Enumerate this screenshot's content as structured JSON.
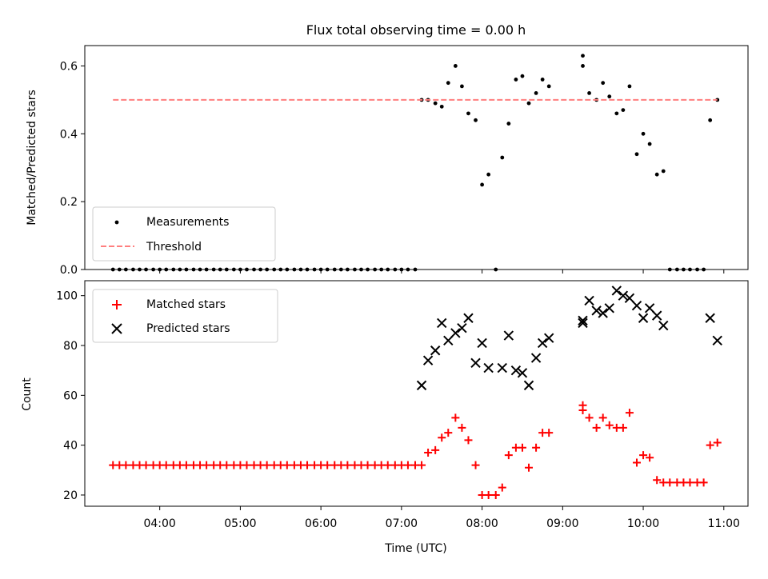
{
  "chart_data": {
    "type": "scatter",
    "title": "Flux total observing time = 0.00 h",
    "xlabel": "Time (UTC)",
    "x_unit": "hours UTC",
    "xlim": [
      3.07,
      11.3
    ],
    "x_ticks": [
      4,
      5,
      6,
      7,
      8,
      9,
      10,
      11
    ],
    "x_tick_labels": [
      "04:00",
      "05:00",
      "06:00",
      "07:00",
      "08:00",
      "09:00",
      "10:00",
      "11:00"
    ],
    "panels": [
      {
        "ylabel": "Matched/Predicted stars",
        "ylim": [
          0,
          0.66
        ],
        "y_ticks": [
          0,
          0.2,
          0.4,
          0.6
        ],
        "y_tick_labels": [
          "0.0",
          "0.2",
          "0.4",
          "0.6"
        ],
        "legend": {
          "position": "lower-left",
          "entries": [
            "Measurements",
            "Threshold"
          ]
        },
        "series": [
          {
            "name": "Measurements",
            "marker": "dot",
            "color": "#000000",
            "points": [
              [
                3.42,
                0
              ],
              [
                3.5,
                0
              ],
              [
                3.58,
                0
              ],
              [
                3.67,
                0
              ],
              [
                3.75,
                0
              ],
              [
                3.83,
                0
              ],
              [
                3.92,
                0
              ],
              [
                4.0,
                0
              ],
              [
                4.08,
                0
              ],
              [
                4.17,
                0
              ],
              [
                4.25,
                0
              ],
              [
                4.33,
                0
              ],
              [
                4.42,
                0
              ],
              [
                4.5,
                0
              ],
              [
                4.58,
                0
              ],
              [
                4.67,
                0
              ],
              [
                4.75,
                0
              ],
              [
                4.83,
                0
              ],
              [
                4.92,
                0
              ],
              [
                5.0,
                0
              ],
              [
                5.08,
                0
              ],
              [
                5.17,
                0
              ],
              [
                5.25,
                0
              ],
              [
                5.33,
                0
              ],
              [
                5.42,
                0
              ],
              [
                5.5,
                0
              ],
              [
                5.58,
                0
              ],
              [
                5.67,
                0
              ],
              [
                5.75,
                0
              ],
              [
                5.83,
                0
              ],
              [
                5.92,
                0
              ],
              [
                6.0,
                0
              ],
              [
                6.08,
                0
              ],
              [
                6.17,
                0
              ],
              [
                6.25,
                0
              ],
              [
                6.33,
                0
              ],
              [
                6.42,
                0
              ],
              [
                6.5,
                0
              ],
              [
                6.58,
                0
              ],
              [
                6.67,
                0
              ],
              [
                6.75,
                0
              ],
              [
                6.83,
                0
              ],
              [
                6.92,
                0
              ],
              [
                7.0,
                0
              ],
              [
                7.08,
                0
              ],
              [
                7.17,
                0
              ],
              [
                7.25,
                0.5
              ],
              [
                7.33,
                0.5
              ],
              [
                7.42,
                0.49
              ],
              [
                7.5,
                0.48
              ],
              [
                7.58,
                0.55
              ],
              [
                7.67,
                0.6
              ],
              [
                7.75,
                0.54
              ],
              [
                7.83,
                0.46
              ],
              [
                7.92,
                0.44
              ],
              [
                8.0,
                0.25
              ],
              [
                8.08,
                0.28
              ],
              [
                8.17,
                0
              ],
              [
                8.25,
                0.33
              ],
              [
                8.33,
                0.43
              ],
              [
                8.42,
                0.56
              ],
              [
                8.5,
                0.57
              ],
              [
                8.58,
                0.49
              ],
              [
                8.67,
                0.52
              ],
              [
                8.75,
                0.56
              ],
              [
                8.83,
                0.54
              ],
              [
                9.25,
                0.63
              ],
              [
                9.25,
                0.6
              ],
              [
                9.33,
                0.52
              ],
              [
                9.42,
                0.5
              ],
              [
                9.5,
                0.55
              ],
              [
                9.58,
                0.51
              ],
              [
                9.67,
                0.46
              ],
              [
                9.75,
                0.47
              ],
              [
                9.83,
                0.54
              ],
              [
                9.92,
                0.34
              ],
              [
                10.0,
                0.4
              ],
              [
                10.08,
                0.37
              ],
              [
                10.17,
                0.28
              ],
              [
                10.25,
                0.29
              ],
              [
                10.33,
                0
              ],
              [
                10.42,
                0
              ],
              [
                10.5,
                0
              ],
              [
                10.58,
                0
              ],
              [
                10.67,
                0
              ],
              [
                10.75,
                0
              ],
              [
                10.83,
                0.44
              ],
              [
                10.92,
                0.5
              ]
            ]
          },
          {
            "name": "Threshold",
            "style": "dashed",
            "color": "#ff7f7f",
            "x": [
              3.42,
              10.92
            ],
            "y": [
              0.5,
              0.5
            ]
          }
        ]
      },
      {
        "ylabel": "Count",
        "ylim": [
          15.5,
          106
        ],
        "y_ticks": [
          20,
          40,
          60,
          80,
          100
        ],
        "y_tick_labels": [
          "20",
          "40",
          "60",
          "80",
          "100"
        ],
        "legend": {
          "position": "upper-left",
          "entries": [
            "Matched stars",
            "Predicted stars"
          ]
        },
        "series": [
          {
            "name": "Matched stars",
            "marker": "plus",
            "color": "#ff0000",
            "points": [
              [
                3.42,
                32
              ],
              [
                3.5,
                32
              ],
              [
                3.58,
                32
              ],
              [
                3.67,
                32
              ],
              [
                3.75,
                32
              ],
              [
                3.83,
                32
              ],
              [
                3.92,
                32
              ],
              [
                4.0,
                32
              ],
              [
                4.08,
                32
              ],
              [
                4.17,
                32
              ],
              [
                4.25,
                32
              ],
              [
                4.33,
                32
              ],
              [
                4.42,
                32
              ],
              [
                4.5,
                32
              ],
              [
                4.58,
                32
              ],
              [
                4.67,
                32
              ],
              [
                4.75,
                32
              ],
              [
                4.83,
                32
              ],
              [
                4.92,
                32
              ],
              [
                5.0,
                32
              ],
              [
                5.08,
                32
              ],
              [
                5.17,
                32
              ],
              [
                5.25,
                32
              ],
              [
                5.33,
                32
              ],
              [
                5.42,
                32
              ],
              [
                5.5,
                32
              ],
              [
                5.58,
                32
              ],
              [
                5.67,
                32
              ],
              [
                5.75,
                32
              ],
              [
                5.83,
                32
              ],
              [
                5.92,
                32
              ],
              [
                6.0,
                32
              ],
              [
                6.08,
                32
              ],
              [
                6.17,
                32
              ],
              [
                6.25,
                32
              ],
              [
                6.33,
                32
              ],
              [
                6.42,
                32
              ],
              [
                6.5,
                32
              ],
              [
                6.58,
                32
              ],
              [
                6.67,
                32
              ],
              [
                6.75,
                32
              ],
              [
                6.83,
                32
              ],
              [
                6.92,
                32
              ],
              [
                7.0,
                32
              ],
              [
                7.08,
                32
              ],
              [
                7.17,
                32
              ],
              [
                7.25,
                32
              ],
              [
                7.33,
                37
              ],
              [
                7.42,
                38
              ],
              [
                7.5,
                43
              ],
              [
                7.58,
                45
              ],
              [
                7.67,
                51
              ],
              [
                7.75,
                47
              ],
              [
                7.83,
                42
              ],
              [
                7.92,
                32
              ],
              [
                8.0,
                20
              ],
              [
                8.08,
                20
              ],
              [
                8.17,
                20
              ],
              [
                8.25,
                23
              ],
              [
                8.33,
                36
              ],
              [
                8.42,
                39
              ],
              [
                8.5,
                39
              ],
              [
                8.58,
                31
              ],
              [
                8.67,
                39
              ],
              [
                8.75,
                45
              ],
              [
                8.83,
                45
              ],
              [
                9.25,
                56
              ],
              [
                9.25,
                54
              ],
              [
                9.33,
                51
              ],
              [
                9.42,
                47
              ],
              [
                9.5,
                51
              ],
              [
                9.58,
                48
              ],
              [
                9.67,
                47
              ],
              [
                9.75,
                47
              ],
              [
                9.83,
                53
              ],
              [
                9.92,
                33
              ],
              [
                10.0,
                36
              ],
              [
                10.08,
                35
              ],
              [
                10.17,
                26
              ],
              [
                10.25,
                25
              ],
              [
                10.33,
                25
              ],
              [
                10.42,
                25
              ],
              [
                10.5,
                25
              ],
              [
                10.58,
                25
              ],
              [
                10.67,
                25
              ],
              [
                10.75,
                25
              ],
              [
                10.83,
                40
              ],
              [
                10.92,
                41
              ]
            ]
          },
          {
            "name": "Predicted stars",
            "marker": "x",
            "color": "#000000",
            "points": [
              [
                7.25,
                64
              ],
              [
                7.33,
                74
              ],
              [
                7.42,
                78
              ],
              [
                7.5,
                89
              ],
              [
                7.58,
                82
              ],
              [
                7.67,
                85
              ],
              [
                7.75,
                87
              ],
              [
                7.83,
                91
              ],
              [
                7.92,
                73
              ],
              [
                8.0,
                81
              ],
              [
                8.08,
                71
              ],
              [
                8.25,
                71
              ],
              [
                8.33,
                84
              ],
              [
                8.42,
                70
              ],
              [
                8.5,
                69
              ],
              [
                8.58,
                64
              ],
              [
                8.67,
                75
              ],
              [
                8.75,
                81
              ],
              [
                8.83,
                83
              ],
              [
                9.25,
                89
              ],
              [
                9.25,
                90
              ],
              [
                9.33,
                98
              ],
              [
                9.42,
                94
              ],
              [
                9.5,
                93
              ],
              [
                9.58,
                95
              ],
              [
                9.67,
                102
              ],
              [
                9.75,
                100
              ],
              [
                9.83,
                99
              ],
              [
                9.92,
                96
              ],
              [
                10.0,
                91
              ],
              [
                10.08,
                95
              ],
              [
                10.17,
                92
              ],
              [
                10.25,
                88
              ],
              [
                10.83,
                91
              ],
              [
                10.92,
                82
              ]
            ]
          }
        ]
      }
    ]
  }
}
